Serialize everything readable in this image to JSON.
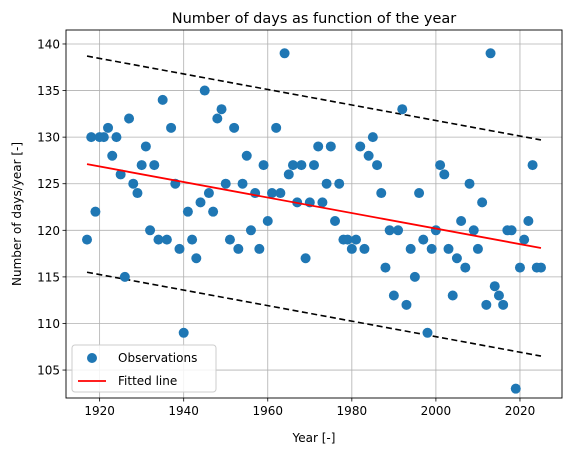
{
  "chart_data": {
    "type": "scatter",
    "title": "Number of days as function of the year",
    "xlabel": "Year [-]",
    "ylabel": "Number of days/year [-]",
    "xlim": [
      1912,
      2030
    ],
    "ylim": [
      102,
      141.5
    ],
    "xticks": [
      1920,
      1940,
      1960,
      1980,
      2000,
      2020
    ],
    "yticks": [
      105,
      110,
      115,
      120,
      125,
      130,
      135,
      140
    ],
    "grid": true,
    "legend_position": "lower-left",
    "colors": {
      "observations": "#1f77b4",
      "fitted": "#ff0000",
      "bounds": "#000000"
    },
    "series": [
      {
        "name": "Observations",
        "kind": "scatter",
        "points": [
          [
            1917,
            119
          ],
          [
            1918,
            130
          ],
          [
            1919,
            122
          ],
          [
            1920,
            130
          ],
          [
            1921,
            130
          ],
          [
            1922,
            131
          ],
          [
            1923,
            128
          ],
          [
            1924,
            130
          ],
          [
            1925,
            126
          ],
          [
            1926,
            115
          ],
          [
            1927,
            132
          ],
          [
            1928,
            125
          ],
          [
            1929,
            124
          ],
          [
            1930,
            127
          ],
          [
            1931,
            129
          ],
          [
            1932,
            120
          ],
          [
            1933,
            127
          ],
          [
            1934,
            119
          ],
          [
            1935,
            134
          ],
          [
            1936,
            119
          ],
          [
            1937,
            131
          ],
          [
            1938,
            125
          ],
          [
            1939,
            118
          ],
          [
            1940,
            109
          ],
          [
            1941,
            122
          ],
          [
            1942,
            119
          ],
          [
            1943,
            117
          ],
          [
            1944,
            123
          ],
          [
            1945,
            135
          ],
          [
            1946,
            124
          ],
          [
            1947,
            122
          ],
          [
            1948,
            132
          ],
          [
            1949,
            133
          ],
          [
            1950,
            125
          ],
          [
            1951,
            119
          ],
          [
            1952,
            131
          ],
          [
            1953,
            118
          ],
          [
            1954,
            125
          ],
          [
            1955,
            128
          ],
          [
            1956,
            120
          ],
          [
            1957,
            124
          ],
          [
            1958,
            118
          ],
          [
            1959,
            127
          ],
          [
            1960,
            121
          ],
          [
            1961,
            124
          ],
          [
            1962,
            131
          ],
          [
            1963,
            124
          ],
          [
            1964,
            139
          ],
          [
            1965,
            126
          ],
          [
            1966,
            127
          ],
          [
            1967,
            123
          ],
          [
            1968,
            127
          ],
          [
            1969,
            117
          ],
          [
            1970,
            123
          ],
          [
            1971,
            127
          ],
          [
            1972,
            129
          ],
          [
            1973,
            123
          ],
          [
            1974,
            125
          ],
          [
            1975,
            129
          ],
          [
            1976,
            121
          ],
          [
            1977,
            125
          ],
          [
            1978,
            119
          ],
          [
            1979,
            119
          ],
          [
            1980,
            118
          ],
          [
            1981,
            119
          ],
          [
            1982,
            129
          ],
          [
            1983,
            118
          ],
          [
            1984,
            128
          ],
          [
            1985,
            130
          ],
          [
            1986,
            127
          ],
          [
            1987,
            124
          ],
          [
            1988,
            116
          ],
          [
            1989,
            120
          ],
          [
            1990,
            113
          ],
          [
            1991,
            120
          ],
          [
            1992,
            133
          ],
          [
            1993,
            112
          ],
          [
            1994,
            118
          ],
          [
            1995,
            115
          ],
          [
            1996,
            124
          ],
          [
            1997,
            119
          ],
          [
            1998,
            109
          ],
          [
            1999,
            118
          ],
          [
            2000,
            120
          ],
          [
            2001,
            127
          ],
          [
            2002,
            126
          ],
          [
            2003,
            118
          ],
          [
            2004,
            113
          ],
          [
            2005,
            117
          ],
          [
            2006,
            121
          ],
          [
            2007,
            116
          ],
          [
            2008,
            125
          ],
          [
            2009,
            120
          ],
          [
            2010,
            118
          ],
          [
            2011,
            123
          ],
          [
            2012,
            112
          ],
          [
            2013,
            139
          ],
          [
            2014,
            114
          ],
          [
            2015,
            113
          ],
          [
            2016,
            112
          ],
          [
            2017,
            120
          ],
          [
            2018,
            120
          ],
          [
            2019,
            103
          ],
          [
            2020,
            116
          ],
          [
            2021,
            119
          ],
          [
            2022,
            121
          ],
          [
            2023,
            127
          ],
          [
            2024,
            116
          ],
          [
            2025,
            116
          ]
        ]
      },
      {
        "name": "Fitted line",
        "kind": "line",
        "points": [
          [
            1917,
            127.1
          ],
          [
            2025,
            118.1
          ]
        ]
      },
      {
        "kind": "dashed-line",
        "points": [
          [
            1917,
            138.7
          ],
          [
            2025,
            129.7
          ]
        ]
      },
      {
        "kind": "dashed-line",
        "points": [
          [
            1917,
            115.5
          ],
          [
            2025,
            106.5
          ]
        ]
      }
    ]
  }
}
